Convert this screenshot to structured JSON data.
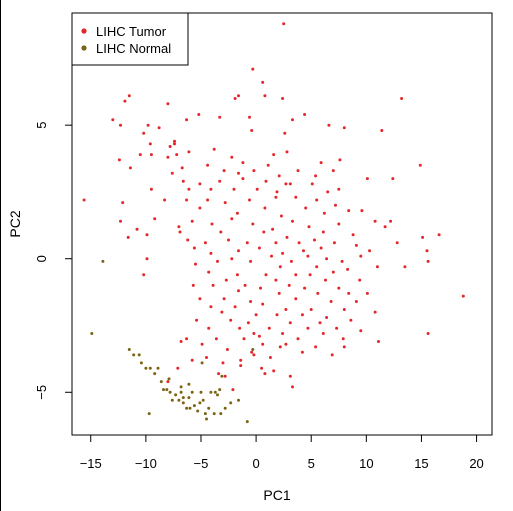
{
  "chart_data": {
    "type": "scatter",
    "xlabel": "PC1",
    "ylabel": "PC2",
    "xlim": [
      -16.7,
      21.4
    ],
    "ylim": [
      -6.6,
      9.2
    ],
    "x_ticks": [
      -15,
      -10,
      -5,
      0,
      5,
      10,
      15,
      20
    ],
    "x_tick_labels": [
      "−15",
      "−10",
      "−5",
      "0",
      "5",
      "10",
      "15",
      "20"
    ],
    "y_ticks": [
      -5,
      0,
      5
    ],
    "y_tick_labels": [
      "−5",
      "0",
      "5"
    ],
    "legend_position": "top-left",
    "series": [
      {
        "name": "LIHC Tumor",
        "color": "#e5262a",
        "points": [
          [
            2.5,
            8.8
          ],
          [
            -13.5,
            7.4
          ],
          [
            -13.1,
            7.4
          ],
          [
            -0.3,
            7.1
          ],
          [
            0.6,
            6.6
          ],
          [
            13.2,
            6.0
          ],
          [
            -11.5,
            6.1
          ],
          [
            -1.6,
            6.1
          ],
          [
            -1.9,
            6.0
          ],
          [
            0.8,
            6.1
          ],
          [
            2.4,
            6.0
          ],
          [
            -11.9,
            5.9
          ],
          [
            -8.0,
            5.8
          ],
          [
            -5.2,
            5.4
          ],
          [
            -6.3,
            5.2
          ],
          [
            -3.3,
            5.3
          ],
          [
            3.3,
            5.2
          ],
          [
            -9.8,
            5.0
          ],
          [
            -13.0,
            5.2
          ],
          [
            -12.3,
            5.0
          ],
          [
            4.4,
            5.4
          ],
          [
            -0.6,
            5.3
          ],
          [
            -10.2,
            4.7
          ],
          [
            -8.8,
            4.9
          ],
          [
            -0.4,
            4.8
          ],
          [
            2.6,
            4.7
          ],
          [
            6.6,
            5.0
          ],
          [
            8.0,
            4.9
          ],
          [
            -7.4,
            4.4
          ],
          [
            -9.6,
            4.3
          ],
          [
            11.4,
            4.8
          ],
          [
            -10.5,
            3.9
          ],
          [
            -9.5,
            3.9
          ],
          [
            -7.8,
            4.2
          ],
          [
            -7.4,
            4.3
          ],
          [
            -6.1,
            4.0
          ],
          [
            -3.8,
            4.1
          ],
          [
            -2.2,
            3.8
          ],
          [
            -1.2,
            3.6
          ],
          [
            1.6,
            3.9
          ],
          [
            2.8,
            4.0
          ],
          [
            -12.4,
            3.7
          ],
          [
            -8.0,
            3.8
          ],
          [
            -7.2,
            3.9
          ],
          [
            -6.7,
            3.4
          ],
          [
            -4.4,
            3.5
          ],
          [
            -2.9,
            3.3
          ],
          [
            -1.6,
            3.2
          ],
          [
            -0.2,
            3.3
          ],
          [
            1.1,
            3.5
          ],
          [
            2.1,
            3.1
          ],
          [
            3.8,
            3.3
          ],
          [
            5.9,
            3.6
          ],
          [
            7.6,
            3.7
          ],
          [
            14.9,
            3.5
          ],
          [
            -11.4,
            3.4
          ],
          [
            -7.6,
            3.2
          ],
          [
            -6.6,
            2.9
          ],
          [
            -5.1,
            2.8
          ],
          [
            -3.3,
            2.9
          ],
          [
            -1.2,
            3.0
          ],
          [
            0.9,
            2.9
          ],
          [
            2.7,
            2.8
          ],
          [
            5.4,
            3.1
          ],
          [
            7.0,
            3.3
          ],
          [
            -9.5,
            2.6
          ],
          [
            -6.1,
            2.6
          ],
          [
            -4.1,
            2.6
          ],
          [
            -2.0,
            2.6
          ],
          [
            0.1,
            2.6
          ],
          [
            1.9,
            2.5
          ],
          [
            3.1,
            2.8
          ],
          [
            5.1,
            2.8
          ],
          [
            6.5,
            2.5
          ],
          [
            7.5,
            2.6
          ],
          [
            10.1,
            3.0
          ],
          [
            12.4,
            3.0
          ],
          [
            -12.1,
            2.1
          ],
          [
            -8.3,
            2.2
          ],
          [
            -6.3,
            2.2
          ],
          [
            -4.4,
            2.2
          ],
          [
            -2.8,
            2.1
          ],
          [
            -0.6,
            2.2
          ],
          [
            1.8,
            2.3
          ],
          [
            3.6,
            2.3
          ],
          [
            5.5,
            2.2
          ],
          [
            7.2,
            2.0
          ],
          [
            9.6,
            1.8
          ],
          [
            -15.6,
            2.2
          ],
          [
            -5.1,
            1.9
          ],
          [
            -1.7,
            1.7
          ],
          [
            0.8,
            1.9
          ],
          [
            2.3,
            1.6
          ],
          [
            4.5,
            1.9
          ],
          [
            6.2,
            1.7
          ],
          [
            8.4,
            1.8
          ],
          [
            -12.3,
            1.4
          ],
          [
            -9.2,
            1.5
          ],
          [
            -7.0,
            1.2
          ],
          [
            -5.8,
            1.4
          ],
          [
            -4.0,
            1.3
          ],
          [
            -2.2,
            1.5
          ],
          [
            -0.3,
            1.3
          ],
          [
            1.5,
            1.1
          ],
          [
            3.3,
            1.4
          ],
          [
            4.8,
            1.2
          ],
          [
            7.5,
            1.3
          ],
          [
            10.8,
            1.4
          ],
          [
            11.7,
            1.2
          ],
          [
            12.2,
            1.4
          ],
          [
            -10.8,
            1.1
          ],
          [
            -6.9,
            1.0
          ],
          [
            -3.2,
            1.0
          ],
          [
            0.7,
            1.0
          ],
          [
            2.8,
            0.8
          ],
          [
            6.1,
            1.0
          ],
          [
            8.8,
            0.9
          ],
          [
            -11.6,
            0.8
          ],
          [
            -9.9,
            0.9
          ],
          [
            -6.2,
            0.7
          ],
          [
            -4.6,
            0.6
          ],
          [
            -2.5,
            0.7
          ],
          [
            -0.8,
            0.6
          ],
          [
            1.8,
            0.6
          ],
          [
            3.9,
            0.6
          ],
          [
            5.3,
            0.7
          ],
          [
            7.1,
            0.6
          ],
          [
            9.1,
            0.5
          ],
          [
            12.8,
            0.6
          ],
          [
            15.1,
            0.8
          ],
          [
            16.6,
            0.9
          ],
          [
            -5.6,
            0.4
          ],
          [
            -1.6,
            0.3
          ],
          [
            0.3,
            0.4
          ],
          [
            2.4,
            0.2
          ],
          [
            4.3,
            0.3
          ],
          [
            5.9,
            0.4
          ],
          [
            10.3,
            0.3
          ],
          [
            15.5,
            0.3
          ],
          [
            -4.1,
            0.2
          ],
          [
            -2.2,
            0.0
          ],
          [
            1.4,
            0.1
          ],
          [
            3.2,
            -0.1
          ],
          [
            4.7,
            0.1
          ],
          [
            6.4,
            0.0
          ],
          [
            7.8,
            -0.1
          ],
          [
            9.5,
            0.1
          ],
          [
            -9.9,
            0.0
          ],
          [
            -5.5,
            -0.2
          ],
          [
            -3.5,
            -0.1
          ],
          [
            -0.5,
            -0.1
          ],
          [
            2.2,
            -0.3
          ],
          [
            5.5,
            -0.3
          ],
          [
            8.3,
            -0.4
          ],
          [
            11.0,
            -0.3
          ],
          [
            13.5,
            -0.3
          ],
          [
            15.6,
            -0.1
          ],
          [
            -4.3,
            -0.5
          ],
          [
            -1.7,
            -0.6
          ],
          [
            0.9,
            -0.6
          ],
          [
            3.6,
            -0.6
          ],
          [
            4.9,
            -0.6
          ],
          [
            7.0,
            -0.5
          ],
          [
            -10.2,
            -0.6
          ],
          [
            -2.7,
            -0.8
          ],
          [
            1.8,
            -0.8
          ],
          [
            6.3,
            -0.8
          ],
          [
            9.4,
            -0.8
          ],
          [
            -5.7,
            -1.0
          ],
          [
            -3.9,
            -1.0
          ],
          [
            -1.0,
            -1.0
          ],
          [
            0.4,
            -1.1
          ],
          [
            3.0,
            -1.0
          ],
          [
            4.4,
            -1.1
          ],
          [
            7.5,
            -1.1
          ],
          [
            -1.6,
            -1.2
          ],
          [
            2.1,
            -1.3
          ],
          [
            5.6,
            -1.3
          ],
          [
            8.4,
            -1.3
          ],
          [
            10.1,
            -1.3
          ],
          [
            -5.1,
            -1.5
          ],
          [
            -2.9,
            -1.5
          ],
          [
            -0.5,
            -1.6
          ],
          [
            3.6,
            -1.5
          ],
          [
            6.8,
            -1.6
          ],
          [
            9.1,
            -1.6
          ],
          [
            -4.1,
            -1.8
          ],
          [
            -1.9,
            -1.8
          ],
          [
            0.6,
            -1.7
          ],
          [
            2.7,
            -1.9
          ],
          [
            5.0,
            -1.9
          ],
          [
            8.0,
            -1.9
          ],
          [
            -3.1,
            -2.0
          ],
          [
            0.0,
            -2.1
          ],
          [
            1.9,
            -2.1
          ],
          [
            4.2,
            -2.1
          ],
          [
            6.4,
            -2.2
          ],
          [
            10.8,
            -2.0
          ],
          [
            18.8,
            -1.4
          ],
          [
            -5.4,
            -2.3
          ],
          [
            -2.3,
            -2.3
          ],
          [
            -0.7,
            -2.4
          ],
          [
            3.1,
            -2.4
          ],
          [
            5.8,
            -2.4
          ],
          [
            8.6,
            -2.3
          ],
          [
            -4.3,
            -2.6
          ],
          [
            -1.5,
            -2.6
          ],
          [
            1.2,
            -2.6
          ],
          [
            4.7,
            -2.6
          ],
          [
            7.3,
            -2.6
          ],
          [
            -0.2,
            -2.8
          ],
          [
            2.4,
            -2.8
          ],
          [
            6.1,
            -2.8
          ],
          [
            9.5,
            -2.7
          ],
          [
            -3.6,
            -3.0
          ],
          [
            -1.1,
            -3.0
          ],
          [
            3.8,
            -3.0
          ],
          [
            7.9,
            -3.0
          ],
          [
            15.6,
            -2.8
          ],
          [
            -6.8,
            -3.1
          ],
          [
            0.6,
            -3.2
          ],
          [
            2.7,
            -3.2
          ],
          [
            5.4,
            -3.3
          ],
          [
            8.0,
            -3.3
          ],
          [
            11.1,
            -3.1
          ],
          [
            -2.6,
            -3.4
          ],
          [
            -0.4,
            -3.5
          ],
          [
            4.2,
            -3.5
          ],
          [
            6.9,
            -3.6
          ],
          [
            -4.5,
            -3.7
          ],
          [
            1.3,
            -3.7
          ],
          [
            -1.4,
            -4.0
          ],
          [
            0.5,
            -4.1
          ],
          [
            -7.1,
            -4.1
          ],
          [
            0.8,
            -4.3
          ],
          [
            3.1,
            -4.4
          ],
          [
            -4.9,
            -3.2
          ],
          [
            -3.4,
            -4.3
          ],
          [
            -0.2,
            -3.6
          ],
          [
            3.3,
            -4.8
          ],
          [
            -2.1,
            -4.9
          ],
          [
            -3.0,
            -3.9
          ],
          [
            -8.0,
            -4.6
          ],
          [
            -1.4,
            -3.8
          ],
          [
            0.3,
            -2.9
          ],
          [
            -5.8,
            -3.8
          ],
          [
            1.6,
            -4.2
          ],
          [
            -2.8,
            -4.4
          ],
          [
            2.2,
            -3.3
          ],
          [
            -6.3,
            -3.0
          ]
        ]
      },
      {
        "name": "LIHC Normal",
        "color": "#7b6414",
        "points": [
          [
            -13.6,
            7.6
          ],
          [
            -13.9,
            -0.1
          ],
          [
            -14.9,
            -2.8
          ],
          [
            -11.5,
            -3.4
          ],
          [
            -11.1,
            -3.6
          ],
          [
            -10.6,
            -3.6
          ],
          [
            -10.4,
            -3.9
          ],
          [
            -10.0,
            -4.1
          ],
          [
            -9.6,
            -4.1
          ],
          [
            -9.2,
            -4.3
          ],
          [
            -8.9,
            -4.1
          ],
          [
            -8.6,
            -4.6
          ],
          [
            -8.4,
            -4.9
          ],
          [
            -8.1,
            -4.9
          ],
          [
            -7.8,
            -5.0
          ],
          [
            -7.6,
            -5.3
          ],
          [
            -7.3,
            -5.1
          ],
          [
            -7.0,
            -5.3
          ],
          [
            -6.8,
            -5.0
          ],
          [
            -6.6,
            -5.4
          ],
          [
            -6.3,
            -5.6
          ],
          [
            -6.1,
            -5.2
          ],
          [
            -5.8,
            -5.0
          ],
          [
            -5.6,
            -5.5
          ],
          [
            -5.3,
            -5.7
          ],
          [
            -5.1,
            -5.4
          ],
          [
            -4.8,
            -5.3
          ],
          [
            -4.6,
            -5.8
          ],
          [
            -4.3,
            -5.6
          ],
          [
            -4.1,
            -5.0
          ],
          [
            -3.8,
            -5.8
          ],
          [
            -3.5,
            -5.1
          ],
          [
            -3.2,
            -5.8
          ],
          [
            -2.8,
            -5.6
          ],
          [
            -2.3,
            -5.4
          ],
          [
            -9.7,
            -5.8
          ],
          [
            -6.8,
            -4.8
          ],
          [
            -6.1,
            -4.7
          ],
          [
            -4.9,
            -3.9
          ],
          [
            -3.3,
            -4.9
          ],
          [
            -1.6,
            -5.3
          ],
          [
            -0.8,
            -6.1
          ],
          [
            -6.6,
            -5.2
          ],
          [
            -5.0,
            -5.0
          ],
          [
            -3.1,
            -4.4
          ],
          [
            -0.3,
            -3.4
          ],
          [
            -6.0,
            -5.6
          ],
          [
            -7.9,
            -4.5
          ],
          [
            -4.5,
            -6.0
          ],
          [
            -3.7,
            -5.0
          ]
        ]
      }
    ]
  }
}
